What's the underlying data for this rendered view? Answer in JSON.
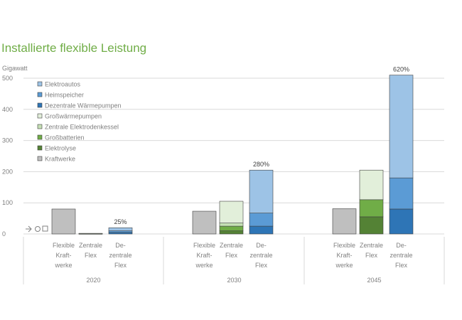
{
  "chart_data": {
    "type": "bar",
    "stacked": true,
    "title": "Installierte flexible Leistung",
    "ylabel": "Gigawatt",
    "ylim": [
      0,
      500
    ],
    "yticks": [
      0,
      100,
      200,
      300,
      400,
      500
    ],
    "grid": true,
    "legend_position": "top-left",
    "groups": [
      "2020",
      "2030",
      "2045"
    ],
    "bar_labels": [
      [
        "Flexible",
        "Kraft-",
        "werke"
      ],
      [
        "Zentrale",
        "Flex"
      ],
      [
        "De-",
        "zentrale",
        "Flex"
      ]
    ],
    "series": [
      {
        "name": "Kraftwerke",
        "color": "#bfbfbf"
      },
      {
        "name": "Elektrolyse",
        "color": "#548235"
      },
      {
        "name": "Großbatterien",
        "color": "#70ad47"
      },
      {
        "name": "Zentrale Elektrodenkessel",
        "color": "#c5e0b4"
      },
      {
        "name": "Großwärmepumpen",
        "color": "#e2efda"
      },
      {
        "name": "Dezentrale Wärmepumpen",
        "color": "#2e75b6"
      },
      {
        "name": "Heimspeicher",
        "color": "#5b9bd5"
      },
      {
        "name": "Elektroautos",
        "color": "#9dc3e6"
      }
    ],
    "bars": [
      {
        "group": "2020",
        "bar": 0,
        "values": {
          "Kraftwerke": 80
        }
      },
      {
        "group": "2020",
        "bar": 1,
        "values": {
          "Elektrolyse": 0,
          "Großbatterien": 1,
          "Zentrale Elektrodenkessel": 1,
          "Großwärmepumpen": 0
        }
      },
      {
        "group": "2020",
        "bar": 2,
        "values": {
          "Dezentrale Wärmepumpen": 5,
          "Heimspeicher": 5,
          "Elektroautos": 10
        },
        "annotation": "25%"
      },
      {
        "group": "2030",
        "bar": 0,
        "values": {
          "Kraftwerke": 73
        }
      },
      {
        "group": "2030",
        "bar": 1,
        "values": {
          "Elektrolyse": 10,
          "Großbatterien": 15,
          "Zentrale Elektrodenkessel": 10,
          "Großwärmepumpen": 70
        }
      },
      {
        "group": "2030",
        "bar": 2,
        "values": {
          "Dezentrale Wärmepumpen": 25,
          "Heimspeicher": 42,
          "Elektroautos": 138
        },
        "annotation": "280%"
      },
      {
        "group": "2045",
        "bar": 0,
        "values": {
          "Kraftwerke": 81
        }
      },
      {
        "group": "2045",
        "bar": 1,
        "values": {
          "Elektrolyse": 55,
          "Großbatterien": 55,
          "Zentrale Elektrodenkessel": 0,
          "Großwärmepumpen": 95
        }
      },
      {
        "group": "2045",
        "bar": 2,
        "values": {
          "Dezentrale Wärmepumpen": 80,
          "Heimspeicher": 100,
          "Elektroautos": 330
        },
        "annotation": "620%"
      }
    ],
    "legend_order": [
      "Elektroautos",
      "Heimspeicher",
      "Dezentrale Wärmepumpen",
      "Großwärmepumpen",
      "Zentrale Elektrodenkessel",
      "Großbatterien",
      "Elektrolyse",
      "Kraftwerke"
    ],
    "axis_colors": {
      "grid": "#d9d9d9",
      "text": "#808080",
      "bar_outline": "#404040"
    }
  }
}
